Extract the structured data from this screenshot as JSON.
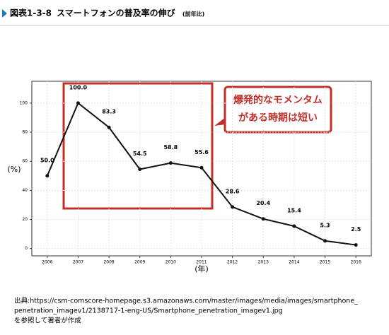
{
  "header": {
    "figure_number": "図表1-3-8",
    "title": "スマートフォンの普及率の伸び",
    "subtitle": "(前年比)"
  },
  "chart_data": {
    "type": "line",
    "x": [
      2006,
      2007,
      2008,
      2009,
      2010,
      2011,
      2012,
      2013,
      2014,
      2015,
      2016
    ],
    "values": [
      50.0,
      100.0,
      83.3,
      54.5,
      58.8,
      55.6,
      28.6,
      20.4,
      15.4,
      5.3,
      2.5
    ],
    "value_labels": [
      "50.0",
      "100.0",
      "83.3",
      "54.5",
      "58.8",
      "55.6",
      "28.6",
      "20.4",
      "15.4",
      "5.3",
      "2.5"
    ],
    "color": "#111111",
    "xlim": [
      2005.5,
      2016.5
    ],
    "xticks": [
      2006,
      2007,
      2008,
      2009,
      2010,
      2011,
      2012,
      2013,
      2014,
      2015,
      2016
    ],
    "ylim": [
      -5,
      115
    ],
    "yticks": [
      0,
      20,
      40,
      60,
      80,
      100
    ],
    "grid": true,
    "ylabel": "(%)",
    "xlabel": "(年)",
    "annotation": [
      "爆発的なモメンタム",
      "がある時期は短い"
    ]
  },
  "source": [
    "出典:https://csm-comscore-homepage.s3.amazonaws.com/master/images/media/images/smartphone_",
    "penetration_imagev1/2138717-1-eng-US/Smartphone_penetration_imagev1.jpg",
    "を参照して著者が作成"
  ]
}
